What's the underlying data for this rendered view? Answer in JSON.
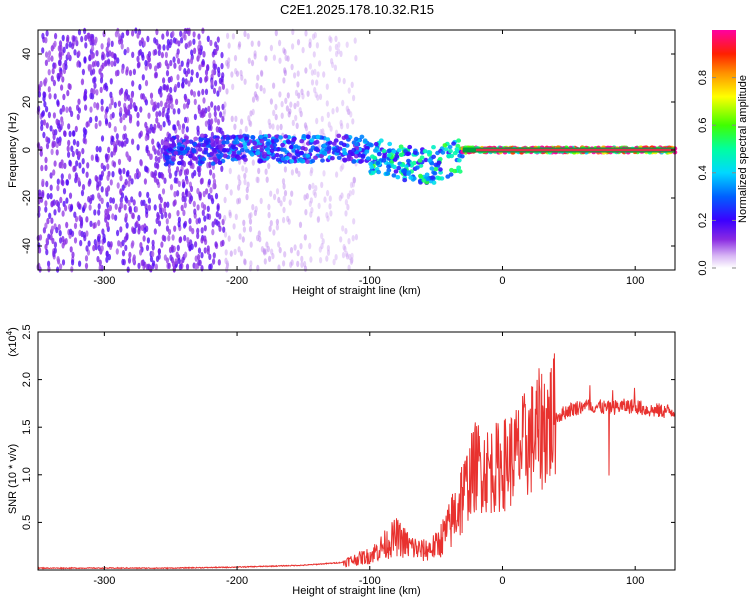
{
  "figure": {
    "title": "C2E1.2025.178.10.32.R15"
  },
  "colors": {
    "snr_line": "#e8322f",
    "zero_line": "#00a040",
    "carrier": "#e0304a",
    "background": "#ffffff"
  },
  "chart_data": [
    {
      "type": "heatmap",
      "xlabel": "Height of straight line (km)",
      "ylabel": "Frequency (Hz)",
      "xlim": [
        -350,
        130
      ],
      "ylim": [
        -50,
        50
      ],
      "x_ticks": [
        -300,
        -200,
        -100,
        0,
        100
      ],
      "x_tick_labels": [
        "-300",
        "-200",
        "-100",
        "0",
        "100"
      ],
      "y_ticks": [
        -40,
        -20,
        0,
        20,
        40
      ],
      "y_tick_labels": [
        "-40",
        "-20",
        "0",
        "20",
        "40"
      ],
      "colorbar": {
        "label": "Normalized spectral amplitude",
        "range": [
          0,
          1
        ],
        "ticks": [
          0,
          0.2,
          0.4,
          0.6,
          0.8
        ],
        "tick_labels": [
          "0.0",
          "0.2",
          "0.4",
          "0.6",
          "0.8"
        ],
        "colormap": "rainbow (white-violet-blue-cyan-green-yellow-red-magenta)"
      },
      "regions": [
        {
          "x_range": [
            -350,
            -210
          ],
          "freq_spread_hz": [
            -50,
            50
          ],
          "amplitude": 0.1
        },
        {
          "x_range": [
            -210,
            -145
          ],
          "freq_spread_hz": [
            -50,
            50
          ],
          "amplitude": 0.03
        },
        {
          "x_range": [
            -145,
            -110
          ],
          "freq_spread_hz": [
            -50,
            50
          ],
          "amplitude": 0.01
        },
        {
          "x_range": [
            -255,
            -210
          ],
          "freq_spread_hz": [
            -6,
            6
          ],
          "amplitude": 0.25
        },
        {
          "x_range": [
            -210,
            -100
          ],
          "freq_spread_hz": [
            -5,
            6
          ],
          "amplitude": 0.3
        },
        {
          "x_range": [
            -100,
            -30
          ],
          "freq_spread_hz": [
            -10,
            5
          ],
          "amplitude": 0.45
        },
        {
          "x_range": [
            -30,
            130
          ],
          "freq_spread_hz": [
            -1,
            1
          ],
          "amplitude": 0.95
        }
      ],
      "reference_line_hz": 0
    },
    {
      "type": "line",
      "xlabel": "Height of straight line (km)",
      "ylabel": "SNR (10 * v/v)",
      "y_scale_label": "(x10",
      "y_scale_exponent": "4",
      "xlim": [
        -350,
        130
      ],
      "ylim": [
        0,
        2.5
      ],
      "x_ticks": [
        -300,
        -200,
        -100,
        0,
        100
      ],
      "x_tick_labels": [
        "-300",
        "-200",
        "-100",
        "0",
        "100"
      ],
      "y_ticks": [
        0.5,
        1.0,
        1.5,
        2.0,
        2.5
      ],
      "y_tick_labels": [
        "0.5",
        "1.0",
        "1.5",
        "2.0",
        "2.5"
      ],
      "series": [
        {
          "x": [
            -350,
            -300,
            -250,
            -200,
            -150,
            -120,
            -100,
            -90,
            -80,
            -70,
            -60,
            -50,
            -40,
            -30,
            -20,
            -10,
            0,
            10,
            20,
            30,
            40,
            50,
            60,
            70,
            80,
            90,
            100,
            110,
            120,
            130
          ],
          "y": [
            0.02,
            0.02,
            0.02,
            0.03,
            0.05,
            0.08,
            0.15,
            0.25,
            0.35,
            0.25,
            0.2,
            0.25,
            0.45,
            0.8,
            1.1,
            1.05,
            1.1,
            1.2,
            1.35,
            1.5,
            1.6,
            1.68,
            1.72,
            1.72,
            1.7,
            1.72,
            1.72,
            1.68,
            1.67,
            1.67
          ]
        }
      ]
    }
  ]
}
